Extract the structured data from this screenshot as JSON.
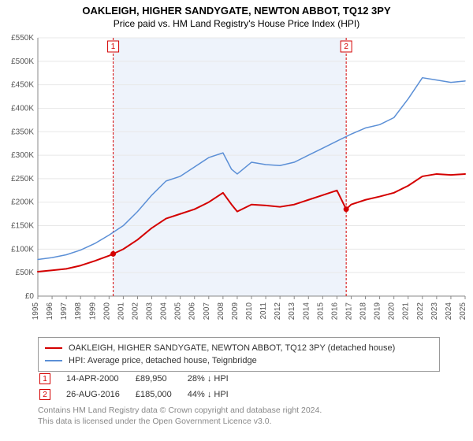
{
  "title_line1": "OAKLEIGH, HIGHER SANDYGATE, NEWTON ABBOT, TQ12 3PY",
  "title_line2": "Price paid vs. HM Land Registry's House Price Index (HPI)",
  "chart": {
    "type": "line",
    "background_color": "#ffffff",
    "grid_color": "#e8e8e8",
    "axis_color": "#888888",
    "axis_label_color": "#555555",
    "axis_fontsize": 10,
    "x": {
      "min": 1995,
      "max": 2025,
      "ticks": [
        1995,
        1996,
        1997,
        1998,
        1999,
        2000,
        2001,
        2002,
        2003,
        2004,
        2005,
        2006,
        2007,
        2008,
        2009,
        2010,
        2011,
        2012,
        2013,
        2014,
        2015,
        2016,
        2017,
        2018,
        2019,
        2020,
        2021,
        2022,
        2023,
        2024,
        2025
      ],
      "tick_labels": [
        "1995",
        "1996",
        "1997",
        "1998",
        "1999",
        "2000",
        "2001",
        "2002",
        "2003",
        "2004",
        "2005",
        "2006",
        "2007",
        "2008",
        "2009",
        "2010",
        "2011",
        "2012",
        "2013",
        "2014",
        "2015",
        "2016",
        "2017",
        "2018",
        "2019",
        "2020",
        "2021",
        "2022",
        "2023",
        "2024",
        "2025"
      ],
      "label_rotation": -90
    },
    "y": {
      "min": 0,
      "max": 550000,
      "ticks": [
        0,
        50000,
        100000,
        150000,
        200000,
        250000,
        300000,
        350000,
        400000,
        450000,
        500000,
        550000
      ],
      "tick_labels": [
        "£0",
        "£50K",
        "£100K",
        "£150K",
        "£200K",
        "£250K",
        "£300K",
        "£350K",
        "£400K",
        "£450K",
        "£500K",
        "£550K"
      ]
    },
    "shade_band": {
      "from_x": 2000.29,
      "to_x": 2016.65,
      "fill": "#eef3fb"
    },
    "series": [
      {
        "name": "property",
        "label": "OAKLEIGH, HIGHER SANDYGATE, NEWTON ABBOT, TQ12 3PY (detached house)",
        "color": "#d40000",
        "line_width": 2,
        "x": [
          1995,
          1996,
          1997,
          1998,
          1999,
          2000,
          2000.29,
          2001,
          2002,
          2003,
          2004,
          2005,
          2006,
          2007,
          2008,
          2008.6,
          2009,
          2010,
          2011,
          2012,
          2013,
          2014,
          2015,
          2016,
          2016.65,
          2017,
          2018,
          2019,
          2020,
          2021,
          2022,
          2023,
          2024,
          2025
        ],
        "y": [
          52000,
          55000,
          58000,
          65000,
          75000,
          86000,
          89950,
          100000,
          120000,
          145000,
          165000,
          175000,
          185000,
          200000,
          220000,
          195000,
          180000,
          195000,
          193000,
          190000,
          195000,
          205000,
          215000,
          225000,
          185000,
          195000,
          205000,
          212000,
          220000,
          235000,
          255000,
          260000,
          258000,
          260000
        ]
      },
      {
        "name": "hpi",
        "label": "HPI: Average price, detached house, Teignbridge",
        "color": "#5b8fd6",
        "line_width": 1.5,
        "x": [
          1995,
          1996,
          1997,
          1998,
          1999,
          2000,
          2001,
          2002,
          2003,
          2004,
          2005,
          2006,
          2007,
          2008,
          2008.6,
          2009,
          2010,
          2011,
          2012,
          2013,
          2014,
          2015,
          2016,
          2017,
          2018,
          2019,
          2020,
          2021,
          2022,
          2023,
          2024,
          2025
        ],
        "y": [
          78000,
          82000,
          88000,
          98000,
          112000,
          130000,
          150000,
          180000,
          215000,
          245000,
          255000,
          275000,
          295000,
          305000,
          270000,
          260000,
          285000,
          280000,
          278000,
          285000,
          300000,
          315000,
          330000,
          345000,
          358000,
          365000,
          380000,
          420000,
          465000,
          460000,
          455000,
          458000
        ]
      }
    ],
    "markers": [
      {
        "id": "1",
        "x": 2000.29,
        "y": 89950,
        "color": "#d40000",
        "line_dash": "3,2"
      },
      {
        "id": "2",
        "x": 2016.65,
        "y": 185000,
        "color": "#d40000",
        "line_dash": "3,2"
      }
    ],
    "marker_box": {
      "top_offset_y": 18,
      "size": 14,
      "border_color": "#d40000",
      "text_color": "#d40000",
      "fontsize": 10
    }
  },
  "legend": {
    "border_color": "#999999",
    "fontsize": 11,
    "items": [
      {
        "color": "#d40000",
        "label": "OAKLEIGH, HIGHER SANDYGATE, NEWTON ABBOT, TQ12 3PY (detached house)"
      },
      {
        "color": "#5b8fd6",
        "label": "HPI: Average price, detached house, Teignbridge"
      }
    ]
  },
  "marker_rows": [
    {
      "id": "1",
      "date": "14-APR-2000",
      "price": "£89,950",
      "delta": "28% ↓ HPI"
    },
    {
      "id": "2",
      "date": "26-AUG-2016",
      "price": "£185,000",
      "delta": "44% ↓ HPI"
    }
  ],
  "footer_line1": "Contains HM Land Registry data © Crown copyright and database right 2024.",
  "footer_line2": "This data is licensed under the Open Government Licence v3.0."
}
